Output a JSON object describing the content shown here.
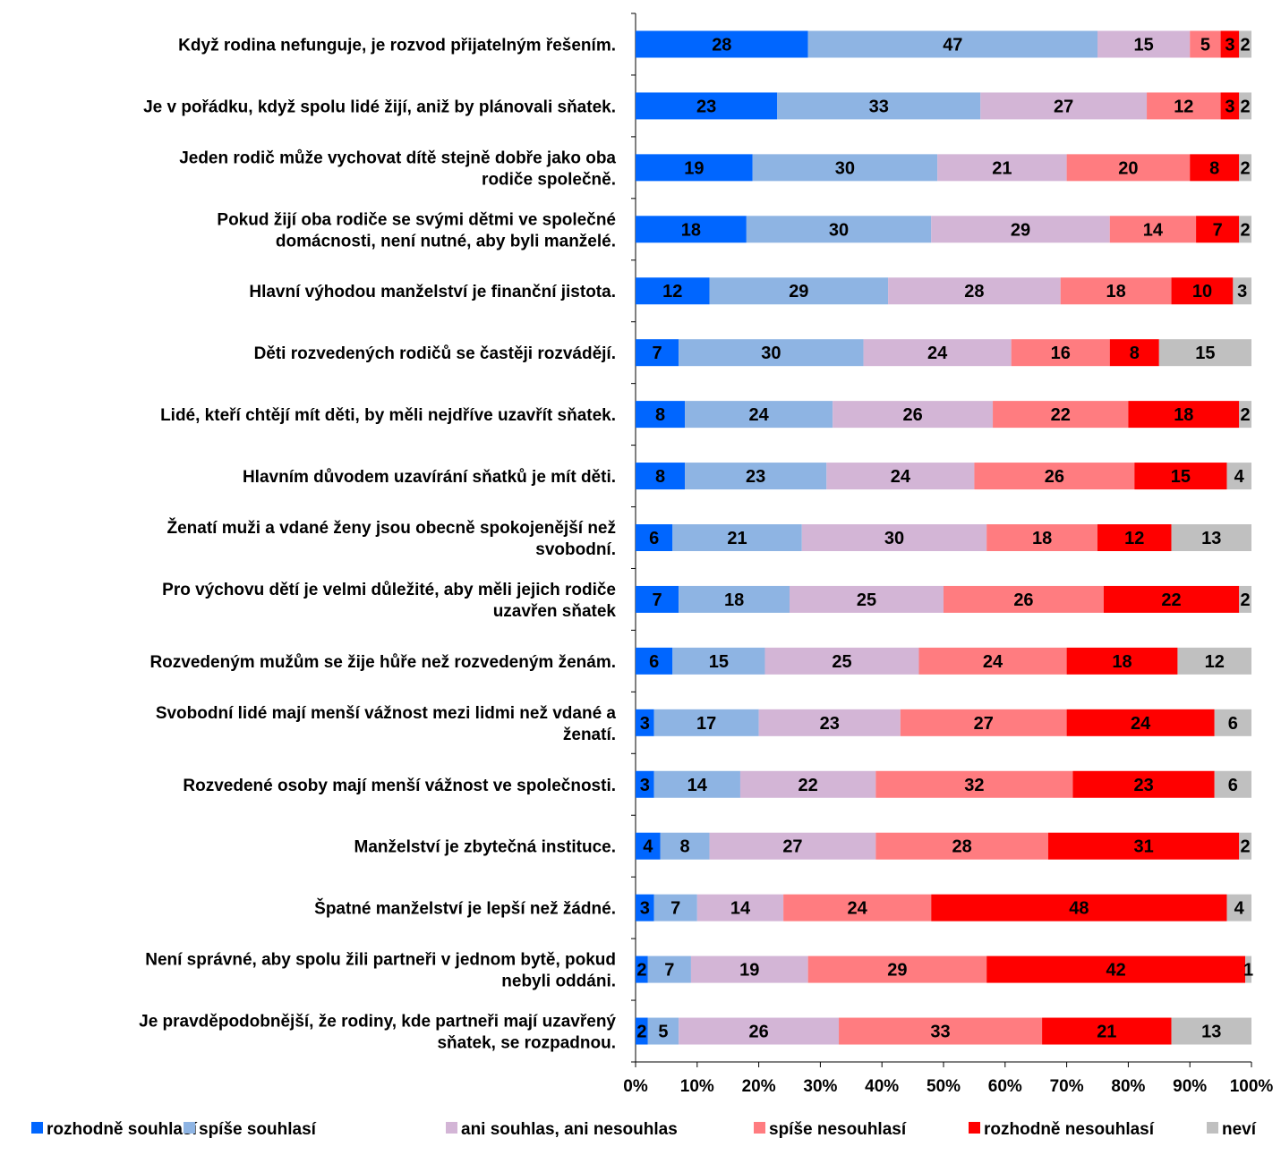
{
  "chart_data": {
    "type": "bar",
    "orientation": "horizontal",
    "stacked": true,
    "percent_scale": true,
    "xlim": [
      0,
      100
    ],
    "xticks": [
      "0%",
      "10%",
      "20%",
      "30%",
      "40%",
      "50%",
      "60%",
      "70%",
      "80%",
      "90%",
      "100%"
    ],
    "grid": false,
    "legend_position": "bottom",
    "categories": [
      [
        "Když rodina nefunguje, je rozvod přijatelným řešením."
      ],
      [
        "Je v pořádku, když spolu lidé žijí, aniž by plánovali sňatek."
      ],
      [
        "Jeden rodič může vychovat dítě stejně dobře jako oba",
        "rodiče společně."
      ],
      [
        "Pokud žijí oba rodiče se svými dětmi ve společné",
        "domácnosti, není nutné, aby byli manželé."
      ],
      [
        "Hlavní výhodou manželství je finanční jistota."
      ],
      [
        "Děti rozvedených rodičů se častěji rozvádějí."
      ],
      [
        "Lidé, kteří chtějí mít děti, by měli nejdříve uzavřít sňatek."
      ],
      [
        "Hlavním důvodem uzavírání sňatků je mít děti."
      ],
      [
        "Ženatí muži a vdané ženy jsou obecně spokojenější než",
        "svobodní."
      ],
      [
        "Pro výchovu dětí je velmi důležité, aby měli jejich rodiče",
        "uzavřen sňatek"
      ],
      [
        "Rozvedeným mužům se žije hůře než rozvedeným ženám."
      ],
      [
        "Svobodní lidé mají menší vážnost mezi lidmi než vdané a",
        "ženatí."
      ],
      [
        "Rozvedené osoby mají menší vážnost ve společnosti."
      ],
      [
        "Manželství je zbytečná instituce."
      ],
      [
        "Špatné manželství je lepší než žádné."
      ],
      [
        "Není správné, aby spolu žili partneři v jednom bytě, pokud",
        "nebyli oddáni."
      ],
      [
        "Je pravděpodobnější, že rodiny, kde partneři mají uzavřený",
        "sňatek, se rozpadnou."
      ]
    ],
    "series": [
      {
        "name": "rozhodně souhlasí",
        "color": "#0066ff",
        "values": [
          28,
          23,
          19,
          18,
          12,
          7,
          8,
          8,
          6,
          7,
          6,
          3,
          3,
          4,
          3,
          2,
          2
        ]
      },
      {
        "name": "spíše souhlasí",
        "color": "#8eb4e3",
        "values": [
          47,
          33,
          30,
          30,
          29,
          30,
          24,
          23,
          21,
          18,
          15,
          17,
          14,
          8,
          7,
          7,
          5
        ]
      },
      {
        "name": "ani souhlas, ani nesouhlas",
        "color": "#d3b5d6",
        "values": [
          15,
          27,
          21,
          29,
          28,
          24,
          26,
          24,
          30,
          25,
          25,
          23,
          22,
          27,
          14,
          19,
          26
        ]
      },
      {
        "name": "spíše nesouhlasí",
        "color": "#ff7c80",
        "values": [
          5,
          12,
          20,
          14,
          18,
          16,
          22,
          26,
          18,
          26,
          24,
          27,
          32,
          28,
          24,
          29,
          33
        ]
      },
      {
        "name": "rozhodně nesouhlasí",
        "color": "#ff0000",
        "values": [
          3,
          3,
          8,
          7,
          10,
          8,
          18,
          15,
          12,
          22,
          18,
          24,
          23,
          31,
          48,
          42,
          21
        ]
      },
      {
        "name": "neví",
        "color": "#c0c0c0",
        "values": [
          2,
          2,
          2,
          2,
          3,
          15,
          2,
          4,
          13,
          2,
          12,
          6,
          6,
          2,
          4,
          1,
          13
        ]
      }
    ]
  }
}
